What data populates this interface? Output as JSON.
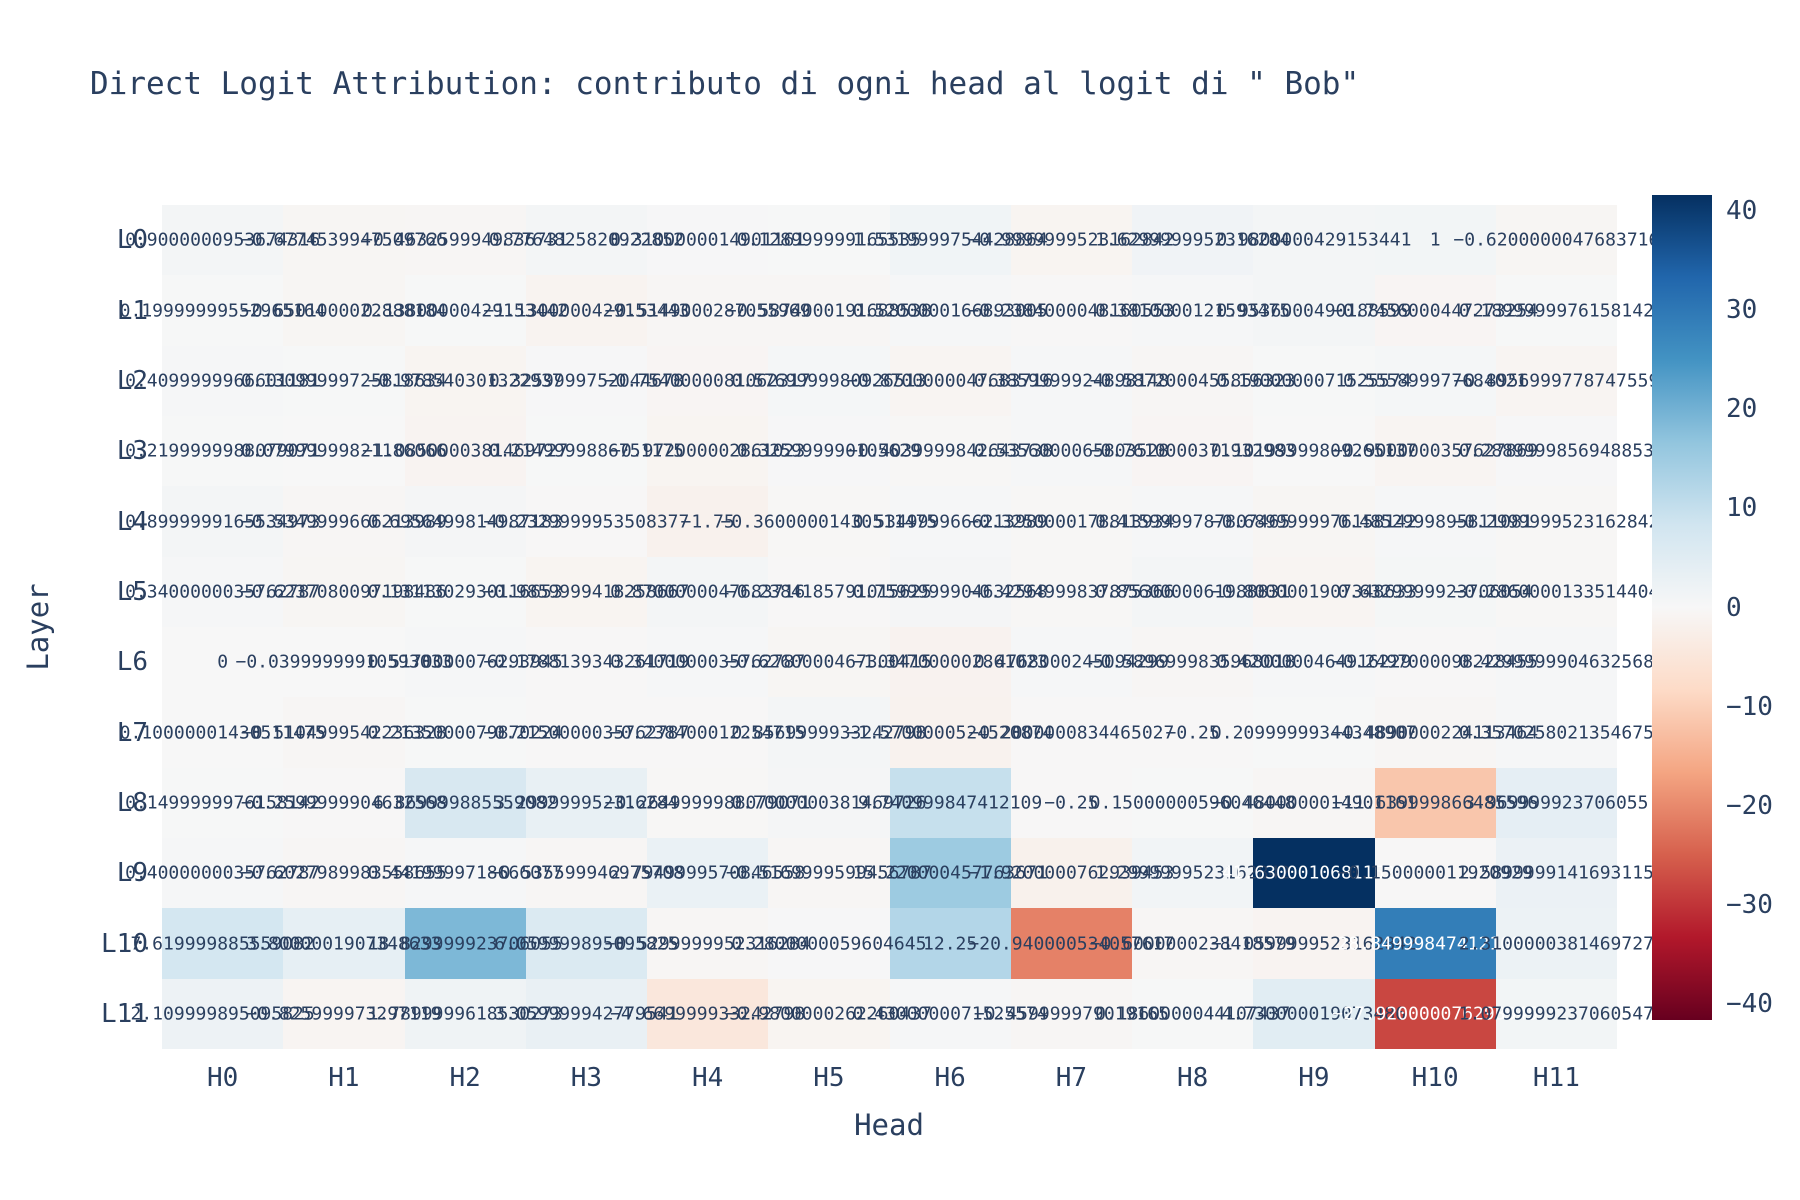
{
  "title": "Direct Logit Attribution: contributo di ogni head al logit di \" Bob\"",
  "text_color": "#2a3f5f",
  "background_color": "#ffffff",
  "chart_data": {
    "type": "heatmap",
    "title": "Direct Logit Attribution: contributo di ogni head al logit di \" Bob\"",
    "xlabel": "Head",
    "ylabel": "Layer",
    "x_categories": [
      "H0",
      "H1",
      "H2",
      "H3",
      "H4",
      "H5",
      "H6",
      "H7",
      "H8",
      "H9",
      "H10",
      "H11"
    ],
    "y_categories": [
      "L0",
      "L1",
      "L2",
      "L3",
      "L4",
      "L5",
      "L6",
      "L7",
      "L8",
      "L9",
      "L10",
      "L11"
    ],
    "zmin": -41.63000106811523,
    "zmax": 41.63000106811523,
    "colorbar_ticks": [
      40,
      30,
      20,
      10,
      0,
      -10,
      -20,
      -30,
      -40
    ],
    "colorscale_name": "RdBu",
    "colorscale_stops": [
      [
        0.0,
        "#67001f"
      ],
      [
        0.1,
        "#b2182b"
      ],
      [
        0.2,
        "#d6604d"
      ],
      [
        0.3,
        "#f4a582"
      ],
      [
        0.4,
        "#fddbc7"
      ],
      [
        0.5,
        "#f7f7f7"
      ],
      [
        0.6,
        "#d1e5f0"
      ],
      [
        0.7,
        "#92c5de"
      ],
      [
        0.8,
        "#4393c3"
      ],
      [
        0.9,
        "#2166ac"
      ],
      [
        1.0,
        "#053061"
      ]
    ],
    "values": [
      [
        0.9000000953674316,
        -0.6774539947509766,
        -0.4632599949836731,
        0.7764825820922852,
        0.3100000014901161,
        0.128999999165535,
        1.5319999754428864,
        -0.9999999523162842,
        1.6299999952316284,
        0.9800000429153441,
        1,
        -0.6200000047683716
      ],
      [
        0.19999999552965164,
        -0.6501000022888184,
        0.13800000429153442,
        -1.1300000429153443,
        -0.5149000287055969,
        -0.5874000191688538,
        0.5200000166893005,
        -0.2384000048160553,
        0.3810000121593475,
        0.9536000490188599,
        -0.7456000447273254,
        0.1899999976158142
      ],
      [
        0.4099999966601181,
        0.13099999725818634,
        -0.978540301322937,
        0.3259999752044678,
        -0.7540000081062317,
        0.5769999980926513,
        -0.8700000047683716,
        0.3859999924898148,
        -0.5872000455856323,
        0.1900000071525574,
        0.555899977684021,
        -0.8956999778747559
      ],
      [
        0.2199999988079071,
        0.07999999821186066,
        -1.0850000381469727,
        0.2149999886751175,
        -0.972000002861023,
        0.325999990105629,
        -0.4039999842643738,
        0.5356000065803528,
        -0.7610000371932983,
        0.10199999809265137,
        -0.9000000357627869,
        0.2889999856948853
      ],
      [
        0.8999999165534973,
        -0.5349999666213989,
        0.6956499814987183,
        -0.2329999953508377,
        -1.75,
        -0.36000001430511475,
        0.5349999666213989,
        -0.3250000178813934,
        0.4159999787807465,
        -0.6899999976158142,
        0.4852999895811081,
        -0.2999999523162842
      ],
      [
        0.3400000035762787,
        -0.6237080097198486,
        0.1311302930116653,
        -0.9859999418258667,
        0.8700000047683716,
        -0.2384185791015625,
        0.7599999904632568,
        -0.4294999837875366,
        0.8560000061988831,
        -0.8000001907348633,
        0.6329999923706054,
        -0.2860000133514404
      ],
      [
        0,
        -0.03999999910593033,
        0.5170000076293945,
        -0.1788139343261719,
        0.3400000035762787,
        -0.6260000467300415,
        -1.347000002861023,
        0.4768000245094299,
        -0.5896999835968018,
        0.4200000464916229,
        -0.2497000098228455,
        0.4299999904632568
      ],
      [
        0.10000001430511475,
        -0.5104999542236328,
        0.2135000079870224,
        -0.2150000035762787,
        -0.238400012254715,
        0.8569999933242798,
        -1.5700000524520874,
        -0.2000000834465027,
        -0.25,
        0.20999999344348907,
        -0.4890000224113464,
        0.3570258021354675
      ],
      [
        0.1499999976158142,
        -0.2599999904632568,
        6.869999885559082,
        3.299999952316284,
        -0.2649999988079071,
        0.7000000381469726,
        9.740999847412109,
        -0.25,
        0.15000000596046448,
        -0.4800000014901161,
        -11.639999866485596,
        3.969999923706055
      ],
      [
        0.4000000035762787,
        -0.6027989983558655,
        0.4419999718666077,
        -0.535599946975708,
        2.7949999570846558,
        -0.5169999599456787,
        15.220000457763671,
        -1.9200000762939453,
        1.2999999523162842,
        41.63000106811523,
        -0.150000011920929,
        2.5899999141693115
      ],
      [
        7.619999885559082,
        3.8000001907348633,
        18.829999923706055,
        6.059999895095825,
        -0.5299999952316284,
        0.2800000059604645,
        12.25,
        -20.940000534057617,
        -0.6000000238418579,
        -1.0599999523162842,
        28.849998474121094,
        2.3100000381469727
      ],
      [
        2.109999895095825,
        -0.825999973297119,
        1.7899999618530273,
        3.059999942779541,
        -4.669999933242798,
        -0.9800000262260437,
        0.4300000071525574,
        -0.459999979019165,
        0.1860000044107437,
        4.730000019073486,
        -27.920000076293945,
        1.0799999237060547
      ]
    ]
  }
}
